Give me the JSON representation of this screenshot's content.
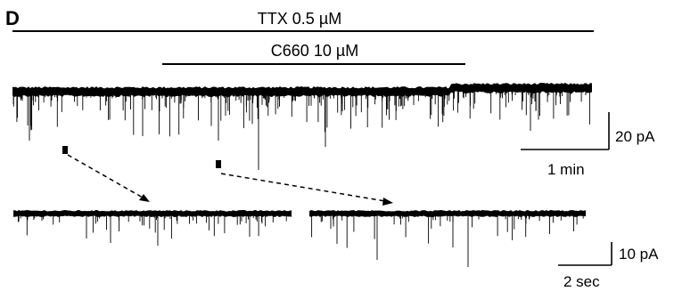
{
  "figure": {
    "panel_letter": "D",
    "treatments": {
      "ttx": "TTX 0.5 µM",
      "c660": "C660 10 µM"
    },
    "scale_bars": {
      "main_amplitude": "20 pA",
      "main_time": "1 min",
      "inset_amplitude": "10 pA",
      "inset_time": "2 sec"
    },
    "colors": {
      "trace": "#000000",
      "background": "#ffffff"
    }
  }
}
